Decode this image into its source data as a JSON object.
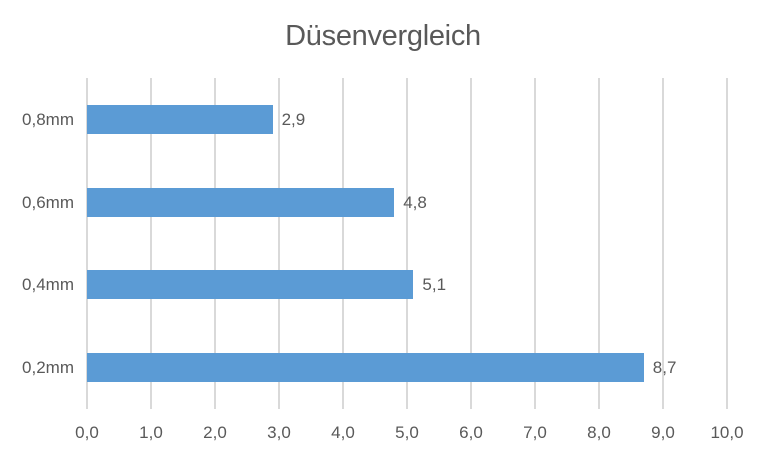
{
  "chart_data": {
    "type": "bar",
    "orientation": "horizontal",
    "title": "Düsenvergleich",
    "categories": [
      "0,8mm",
      "0,6mm",
      "0,4mm",
      "0,2mm"
    ],
    "values": [
      2.9,
      4.8,
      5.1,
      8.7
    ],
    "value_labels": [
      "2,9",
      "4,8",
      "5,1",
      "8,7"
    ],
    "x_ticks": [
      0,
      1,
      2,
      3,
      4,
      5,
      6,
      7,
      8,
      9,
      10
    ],
    "x_tick_labels": [
      "0,0",
      "1,0",
      "2,0",
      "3,0",
      "4,0",
      "5,0",
      "6,0",
      "7,0",
      "8,0",
      "9,0",
      "10,0"
    ],
    "xlim": [
      0,
      10
    ],
    "xlabel": "",
    "ylabel": "",
    "grid": true,
    "legend": false,
    "colors": {
      "bar": "#5b9bd5",
      "gridline": "#d9d9d9",
      "text": "#595959",
      "background": "#ffffff"
    }
  }
}
